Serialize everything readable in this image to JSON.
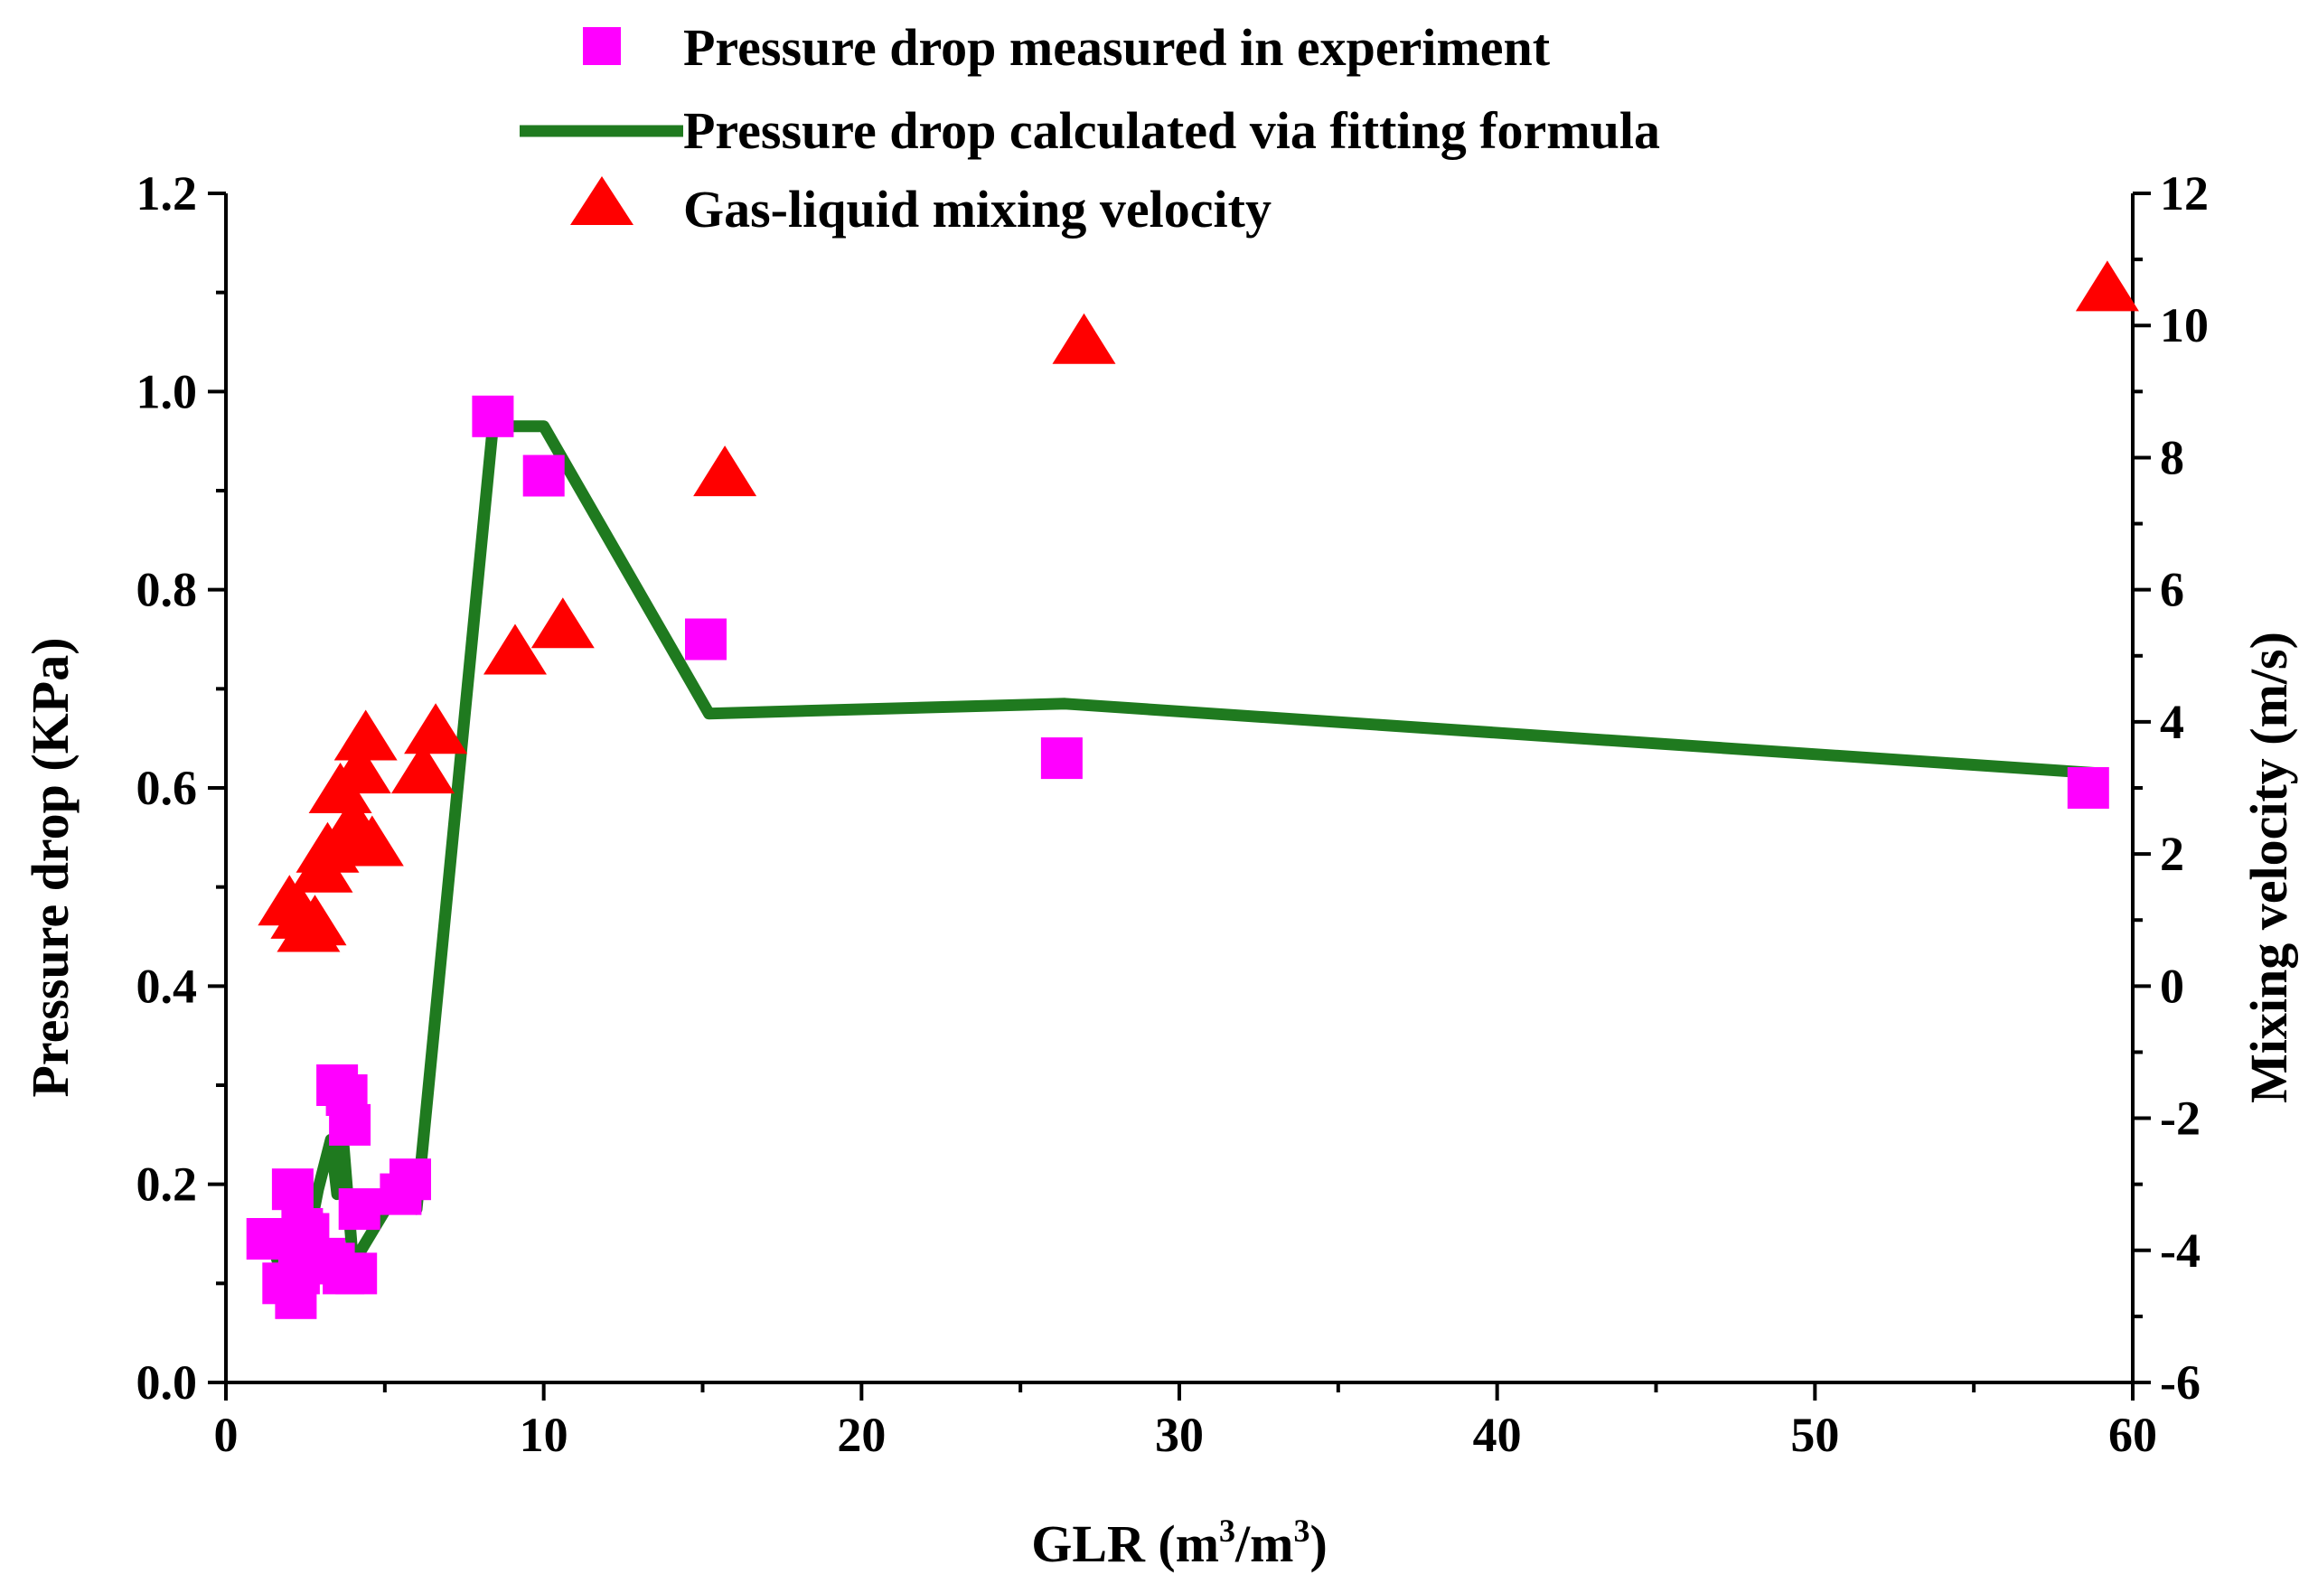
{
  "chart_data": {
    "type": "scatter",
    "xlabel": "GLR (m",
    "xlabel_sup1": "3",
    "xlabel_mid": "/m",
    "xlabel_sup2": "3",
    "xlabel_end": ")",
    "ylabel_left": "Pressure drop (KPa)",
    "ylabel_right": "Mixing velocity (m/s)",
    "xlim": [
      0,
      60
    ],
    "ylim_left": [
      0,
      1.2
    ],
    "ylim_right": [
      -6,
      12
    ],
    "x_ticks": [
      "0",
      "10",
      "20",
      "30",
      "40",
      "50",
      "60"
    ],
    "y_left_ticks": [
      "0.0",
      "0.2",
      "0.4",
      "0.6",
      "0.8",
      "1.0",
      "1.2"
    ],
    "y_right_ticks": [
      "-6",
      "-4",
      "-2",
      "0",
      "2",
      "4",
      "6",
      "8",
      "10",
      "12"
    ],
    "legend": [
      {
        "label": "Pressure drop measured in experiment",
        "marker": "square",
        "color": "#ff00ff"
      },
      {
        "label": "Pressure drop calculated via fitting formula",
        "marker": "line",
        "color": "#1f7a1f"
      },
      {
        "label": "Gas-liquid mixing velocity",
        "marker": "triangle",
        "color": "#ff0000"
      }
    ],
    "series": [
      {
        "name": "Pressure drop measured in experiment",
        "axis": "left",
        "x": [
          1.3,
          1.8,
          2.1,
          2.2,
          2.3,
          2.4,
          2.6,
          2.9,
          3.1,
          3.4,
          3.5,
          3.7,
          3.8,
          3.9,
          4.1,
          4.2,
          5.5,
          5.8,
          8.4,
          10.0,
          15.1,
          26.3,
          58.6
        ],
        "y": [
          0.145,
          0.1,
          0.195,
          0.085,
          0.11,
          0.155,
          0.15,
          0.12,
          0.125,
          0.12,
          0.3,
          0.11,
          0.29,
          0.26,
          0.11,
          0.175,
          0.19,
          0.205,
          0.975,
          0.915,
          0.75,
          0.63,
          0.6
        ]
      },
      {
        "name": "Pressure drop calculated via fitting formula",
        "axis": "left",
        "x": [
          1.5,
          2.0,
          2.2,
          2.3,
          2.5,
          2.9,
          3.3,
          3.5,
          3.7,
          4.0,
          5.5,
          6.0,
          8.4,
          10.0,
          15.2,
          26.4,
          58.8
        ],
        "y": [
          0.135,
          0.085,
          0.17,
          0.085,
          0.13,
          0.195,
          0.245,
          0.19,
          0.24,
          0.12,
          0.2,
          0.175,
          0.965,
          0.965,
          0.675,
          0.685,
          0.615
        ]
      },
      {
        "name": "Gas-liquid mixing velocity",
        "axis": "right",
        "x": [
          2.0,
          2.4,
          2.6,
          2.8,
          3.0,
          3.2,
          3.6,
          3.8,
          4.0,
          4.2,
          4.4,
          4.6,
          6.2,
          6.6,
          9.1,
          10.6,
          15.7,
          27.0,
          59.2
        ],
        "y": [
          1.3,
          1.1,
          0.9,
          1.0,
          1.8,
          2.1,
          3.0,
          2.3,
          2.5,
          3.3,
          3.8,
          2.2,
          3.3,
          3.9,
          5.1,
          5.5,
          7.8,
          9.8,
          10.6
        ]
      }
    ]
  }
}
